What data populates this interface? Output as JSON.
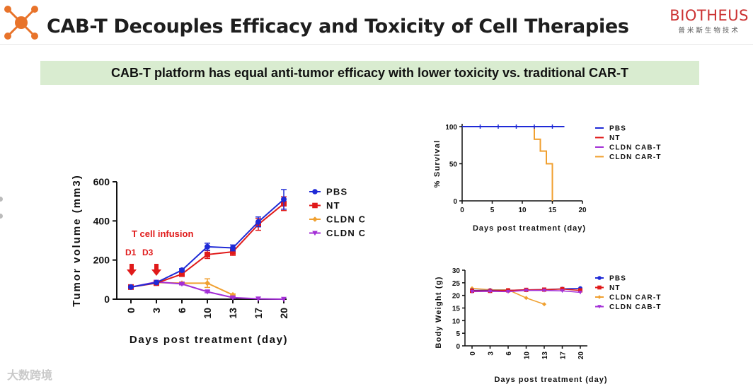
{
  "header": {
    "title": "CAB-T Decouples Efficacy and Toxicity of Cell Therapies",
    "brand_name": "BIOTHEUS",
    "brand_sub": "普米斯生物技术",
    "logo_icon": "molecule-network-icon"
  },
  "banner": {
    "text": "CAB-T platform has equal anti-tumor efficacy with lower toxicity vs. traditional CAR-T"
  },
  "footer": {
    "watermark": "大数跨境"
  },
  "colors": {
    "PBS": "#1f2ad6",
    "NT": "#e01a1a",
    "CLDN CAR-T": "#f0a030",
    "CLDN CAB-T": "#a32fd6",
    "arrow": "#e01a1a",
    "banner_bg": "#d9ecd0"
  },
  "chart_data": [
    {
      "id": "tumor",
      "type": "line",
      "title": "",
      "xlabel": "Days post treatment (day)",
      "ylabel": "Tumor volume (mm3)",
      "categories": [
        "0",
        "3",
        "6",
        "10",
        "13",
        "17",
        "20"
      ],
      "ylim": [
        0,
        600
      ],
      "yticks": [
        0,
        200,
        400,
        600
      ],
      "series": [
        {
          "name": "PBS",
          "marker": "circle",
          "values": [
            62,
            85,
            148,
            268,
            262,
            395,
            510
          ],
          "errors": [
            0,
            0,
            8,
            18,
            15,
            25,
            50
          ]
        },
        {
          "name": "NT",
          "marker": "square",
          "values": [
            62,
            82,
            128,
            228,
            242,
            382,
            488
          ],
          "errors": [
            0,
            0,
            8,
            20,
            18,
            30,
            35
          ]
        },
        {
          "name": "CLDN CAR-T",
          "marker": "diamond",
          "values": [
            62,
            85,
            82,
            82,
            22,
            null,
            null
          ],
          "errors": [
            0,
            0,
            5,
            22,
            5,
            0,
            0
          ]
        },
        {
          "name": "CLDN CAB-T",
          "marker": "triangle-down",
          "values": [
            62,
            88,
            78,
            38,
            8,
            2,
            0
          ],
          "errors": [
            0,
            0,
            5,
            5,
            3,
            0,
            0
          ]
        }
      ],
      "legend_order": [
        "PBS",
        "NT",
        "CLDN CAR-T",
        "CLDN CAB-T"
      ],
      "annotations": {
        "infusion": "T cell infusion",
        "d1": "D1",
        "d3": "D3"
      }
    },
    {
      "id": "survival",
      "type": "line",
      "title": "",
      "xlabel": "Days post treatment (day)",
      "ylabel": "% Survival",
      "xlim": [
        0,
        20
      ],
      "ylim": [
        0,
        100
      ],
      "xticks": [
        0,
        5,
        10,
        15,
        20
      ],
      "yticks": [
        0,
        50,
        100
      ],
      "series": [
        {
          "name": "PBS",
          "x": [
            0,
            17
          ],
          "y": [
            100,
            100
          ]
        },
        {
          "name": "NT",
          "x": [
            0,
            17
          ],
          "y": [
            100,
            100
          ]
        },
        {
          "name": "CLDN CAB-T",
          "x": [
            0,
            17
          ],
          "y": [
            100,
            100
          ]
        },
        {
          "name": "CLDN CAR-T",
          "x": [
            0,
            12,
            12,
            13,
            13,
            14,
            14,
            15,
            15
          ],
          "y": [
            100,
            100,
            83,
            83,
            67,
            67,
            50,
            50,
            0
          ]
        }
      ],
      "legend_order": [
        "PBS",
        "NT",
        "CLDN CAB-T",
        "CLDN CAR-T"
      ]
    },
    {
      "id": "weight",
      "type": "line",
      "title": "",
      "xlabel": "Days post treatment (day)",
      "ylabel": "Body Weight (g)",
      "categories": [
        "0",
        "3",
        "6",
        "10",
        "13",
        "17",
        "20"
      ],
      "ylim": [
        0,
        30
      ],
      "yticks": [
        0,
        5,
        10,
        15,
        20,
        25,
        30
      ],
      "series": [
        {
          "name": "PBS",
          "marker": "circle",
          "values": [
            22,
            22,
            22,
            22.2,
            22.3,
            22.6,
            22.8
          ]
        },
        {
          "name": "NT",
          "marker": "square",
          "values": [
            21.8,
            21.8,
            22,
            22.2,
            22.3,
            22.5,
            22
          ]
        },
        {
          "name": "CLDN CAR-T",
          "marker": "diamond",
          "values": [
            22.8,
            22.2,
            22.2,
            19,
            16.5,
            null,
            null
          ]
        },
        {
          "name": "CLDN CAB-T",
          "marker": "triangle-down",
          "values": [
            21.5,
            21.6,
            21.5,
            22,
            22,
            21.8,
            21.2
          ]
        }
      ],
      "legend_order": [
        "PBS",
        "NT",
        "CLDN CAR-T",
        "CLDN CAB-T"
      ]
    }
  ]
}
